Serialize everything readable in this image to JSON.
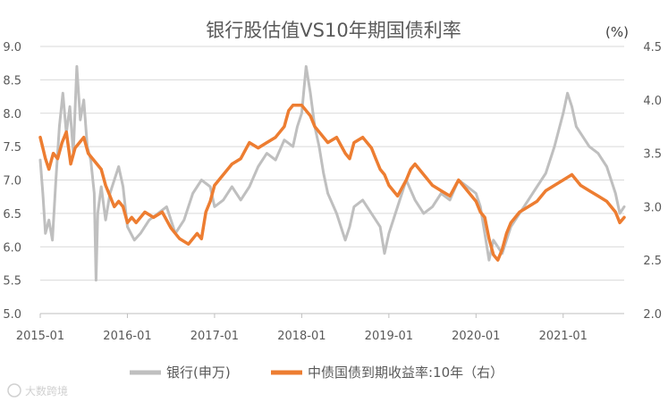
{
  "chart_data": {
    "type": "line",
    "title": "银行股估值VS10年期国债利率",
    "right_unit": "(%)",
    "x_tick_labels": [
      "2015-01",
      "2016-01",
      "2017-01",
      "2018-01",
      "2019-01",
      "2020-01",
      "2021-01"
    ],
    "left_axis": {
      "min": 5.0,
      "max": 9.0,
      "step": 0.5,
      "tick_labels": [
        "5.0",
        "5.5",
        "6.0",
        "6.5",
        "7.0",
        "7.5",
        "8.0",
        "8.5",
        "9.0"
      ]
    },
    "right_axis": {
      "min": 2.0,
      "max": 4.5,
      "step": 0.5,
      "tick_labels": [
        "2.0",
        "2.5",
        "3.0",
        "3.5",
        "4.0",
        "4.5"
      ]
    },
    "x_range": [
      2015.0,
      2021.7
    ],
    "grid": "horizontal",
    "legend_position": "bottom",
    "series": [
      {
        "name": "银行(申万)",
        "axis": "left",
        "color": "#bfbfbf",
        "x": [
          2015.0,
          2015.03,
          2015.06,
          2015.1,
          2015.14,
          2015.18,
          2015.22,
          2015.26,
          2015.3,
          2015.34,
          2015.38,
          2015.42,
          2015.46,
          2015.5,
          2015.54,
          2015.58,
          2015.62,
          2015.64,
          2015.66,
          2015.7,
          2015.75,
          2015.8,
          2015.85,
          2015.9,
          2015.95,
          2016.0,
          2016.08,
          2016.15,
          2016.25,
          2016.35,
          2016.45,
          2016.55,
          2016.65,
          2016.75,
          2016.85,
          2016.95,
          2017.0,
          2017.1,
          2017.2,
          2017.3,
          2017.4,
          2017.5,
          2017.6,
          2017.7,
          2017.8,
          2017.9,
          2017.95,
          2018.0,
          2018.05,
          2018.1,
          2018.15,
          2018.2,
          2018.25,
          2018.3,
          2018.4,
          2018.5,
          2018.55,
          2018.6,
          2018.7,
          2018.8,
          2018.9,
          2018.95,
          2019.0,
          2019.1,
          2019.2,
          2019.3,
          2019.4,
          2019.5,
          2019.6,
          2019.7,
          2019.8,
          2019.9,
          2020.0,
          2020.05,
          2020.1,
          2020.15,
          2020.2,
          2020.25,
          2020.3,
          2020.35,
          2020.4,
          2020.5,
          2020.6,
          2020.7,
          2020.8,
          2020.9,
          2021.0,
          2021.05,
          2021.1,
          2021.15,
          2021.2,
          2021.3,
          2021.4,
          2021.5,
          2021.6,
          2021.65,
          2021.7
        ],
        "y": [
          7.3,
          6.8,
          6.2,
          6.4,
          6.1,
          7.0,
          7.8,
          8.3,
          7.7,
          8.1,
          7.4,
          8.7,
          7.9,
          8.2,
          7.5,
          7.3,
          6.8,
          5.5,
          6.5,
          6.9,
          6.4,
          6.8,
          7.0,
          7.2,
          6.9,
          6.3,
          6.1,
          6.2,
          6.4,
          6.5,
          6.6,
          6.2,
          6.4,
          6.8,
          7.0,
          6.9,
          6.6,
          6.7,
          6.9,
          6.7,
          6.9,
          7.2,
          7.4,
          7.3,
          7.6,
          7.5,
          7.8,
          8.0,
          8.7,
          8.3,
          7.8,
          7.5,
          7.1,
          6.8,
          6.5,
          6.1,
          6.3,
          6.6,
          6.7,
          6.5,
          6.3,
          5.9,
          6.2,
          6.6,
          7.0,
          6.7,
          6.5,
          6.6,
          6.8,
          6.7,
          7.0,
          6.9,
          6.8,
          6.6,
          6.2,
          5.8,
          6.1,
          6.0,
          5.9,
          6.1,
          6.3,
          6.5,
          6.7,
          6.9,
          7.1,
          7.5,
          8.0,
          8.3,
          8.1,
          7.8,
          7.7,
          7.5,
          7.4,
          7.2,
          6.8,
          6.5,
          6.6
        ]
      },
      {
        "name": "中债国债到期收益率:10年（右）",
        "axis": "right",
        "color": "#ed7d31",
        "x": [
          2015.0,
          2015.03,
          2015.06,
          2015.1,
          2015.15,
          2015.2,
          2015.25,
          2015.3,
          2015.35,
          2015.4,
          2015.45,
          2015.5,
          2015.55,
          2015.6,
          2015.65,
          2015.7,
          2015.75,
          2015.8,
          2015.85,
          2015.9,
          2015.95,
          2016.0,
          2016.05,
          2016.1,
          2016.2,
          2016.3,
          2016.4,
          2016.5,
          2016.6,
          2016.7,
          2016.8,
          2016.85,
          2016.9,
          2016.95,
          2017.0,
          2017.1,
          2017.2,
          2017.3,
          2017.4,
          2017.5,
          2017.6,
          2017.7,
          2017.8,
          2017.85,
          2017.9,
          2018.0,
          2018.05,
          2018.1,
          2018.15,
          2018.2,
          2018.3,
          2018.4,
          2018.5,
          2018.55,
          2018.6,
          2018.7,
          2018.8,
          2018.85,
          2018.9,
          2018.95,
          2019.0,
          2019.1,
          2019.2,
          2019.25,
          2019.3,
          2019.4,
          2019.5,
          2019.6,
          2019.7,
          2019.8,
          2019.9,
          2020.0,
          2020.05,
          2020.1,
          2020.15,
          2020.2,
          2020.25,
          2020.3,
          2020.35,
          2020.4,
          2020.5,
          2020.6,
          2020.7,
          2020.8,
          2020.9,
          2021.0,
          2021.1,
          2021.2,
          2021.3,
          2021.4,
          2021.5,
          2021.55,
          2021.6,
          2021.65,
          2021.7
        ],
        "y": [
          3.65,
          3.55,
          3.45,
          3.35,
          3.5,
          3.45,
          3.6,
          3.7,
          3.4,
          3.55,
          3.6,
          3.65,
          3.5,
          3.45,
          3.4,
          3.35,
          3.2,
          3.1,
          3.0,
          3.05,
          3.0,
          2.85,
          2.9,
          2.85,
          2.95,
          2.9,
          2.95,
          2.8,
          2.7,
          2.65,
          2.75,
          2.7,
          2.95,
          3.05,
          3.2,
          3.3,
          3.4,
          3.45,
          3.6,
          3.55,
          3.6,
          3.65,
          3.75,
          3.9,
          3.95,
          3.95,
          3.9,
          3.85,
          3.75,
          3.7,
          3.6,
          3.65,
          3.5,
          3.45,
          3.6,
          3.65,
          3.55,
          3.45,
          3.35,
          3.3,
          3.2,
          3.1,
          3.25,
          3.35,
          3.4,
          3.3,
          3.2,
          3.15,
          3.1,
          3.25,
          3.15,
          3.05,
          2.95,
          2.9,
          2.7,
          2.55,
          2.5,
          2.6,
          2.75,
          2.85,
          2.95,
          3.0,
          3.05,
          3.15,
          3.2,
          3.25,
          3.3,
          3.2,
          3.15,
          3.1,
          3.05,
          3.0,
          2.95,
          2.85,
          2.9
        ]
      }
    ]
  },
  "watermark": "大数跨境"
}
